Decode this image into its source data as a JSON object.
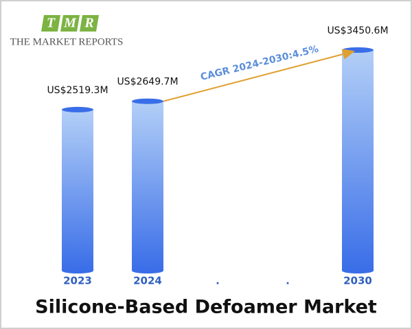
{
  "logo": {
    "letters": [
      "T",
      "M",
      "R"
    ],
    "name": "THE MARKET REPORTS"
  },
  "chart_data": {
    "type": "bar",
    "title": "Silicone-Based Defoamer Market",
    "categories": [
      "2023",
      "2024",
      ".",
      ".",
      "2030"
    ],
    "values": [
      2519.3,
      2649.7,
      null,
      null,
      3450.6
    ],
    "value_labels": [
      "US$2519.3M",
      "US$2649.7M",
      null,
      null,
      "US$3450.6M"
    ],
    "annotation": "CAGR 2024-2030:4.5%",
    "color": "#3a6ee8"
  }
}
